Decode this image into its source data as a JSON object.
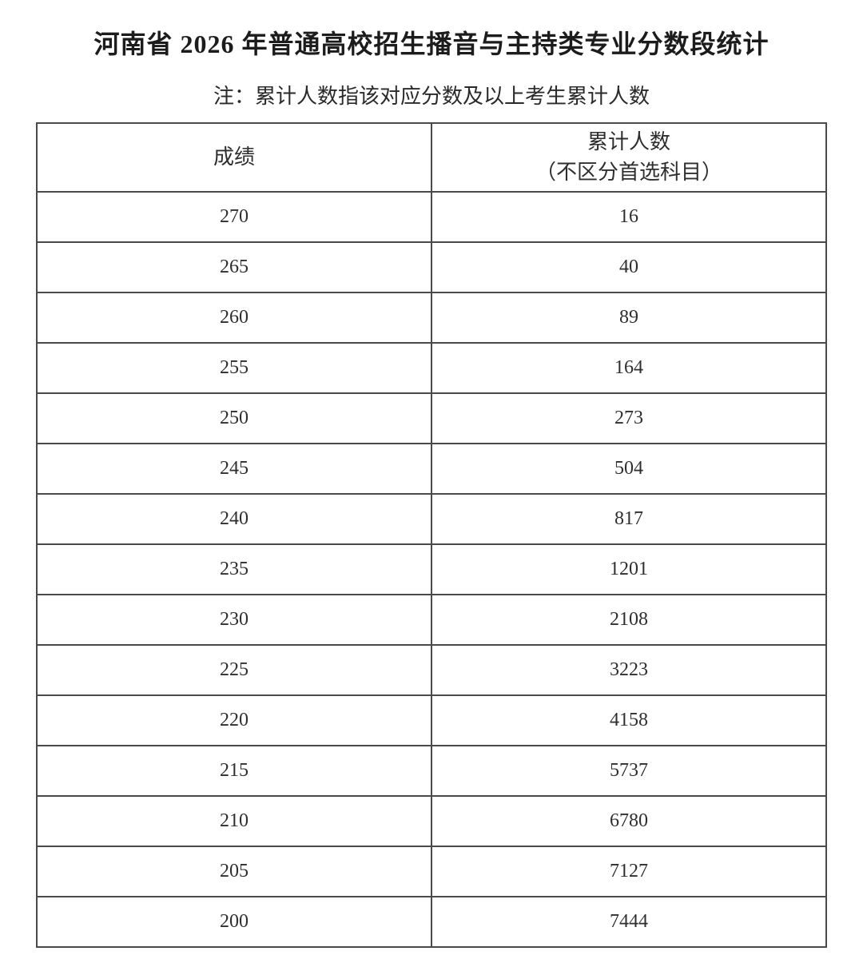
{
  "page": {
    "title": "河南省 2026 年普通高校招生播音与主持类专业分数段统计",
    "note": "注：累计人数指该对应分数及以上考生累计人数"
  },
  "table": {
    "columns": {
      "score_header": "成绩",
      "count_header_line1": "累计人数",
      "count_header_line2": "（不区分首选科目）"
    },
    "rows": [
      {
        "score": "270",
        "count": "16"
      },
      {
        "score": "265",
        "count": "40"
      },
      {
        "score": "260",
        "count": "89"
      },
      {
        "score": "255",
        "count": "164"
      },
      {
        "score": "250",
        "count": "273"
      },
      {
        "score": "245",
        "count": "504"
      },
      {
        "score": "240",
        "count": "817"
      },
      {
        "score": "235",
        "count": "1201"
      },
      {
        "score": "230",
        "count": "2108"
      },
      {
        "score": "225",
        "count": "3223"
      },
      {
        "score": "220",
        "count": "4158"
      },
      {
        "score": "215",
        "count": "5737"
      },
      {
        "score": "210",
        "count": "6780"
      },
      {
        "score": "205",
        "count": "7127"
      },
      {
        "score": "200",
        "count": "7444"
      }
    ]
  }
}
